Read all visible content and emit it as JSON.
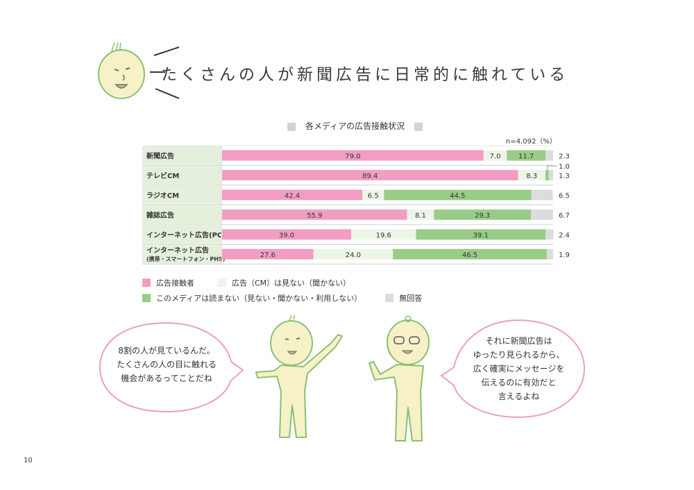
{
  "page": {
    "title": "たくさんの人が新聞広告に日常的に触れている",
    "page_number": "10"
  },
  "chart_data": {
    "type": "bar",
    "title": "各メディアの広告接触状況",
    "note": "n=4,092（%）",
    "categories": [
      "新聞広告",
      "テレビCM",
      "ラジオCM",
      "雑誌広告",
      "インターネット広告(PC)",
      "インターネット広告"
    ],
    "category_sublabels": [
      "",
      "",
      "",
      "",
      "",
      "(携帯・スマートフォン・PHS)"
    ],
    "series": [
      {
        "name": "広告接触者",
        "color": "#f19ec2",
        "values": [
          79.0,
          89.4,
          42.4,
          55.9,
          39.0,
          27.6
        ]
      },
      {
        "name": "広告（CM）は見ない（聞かない）",
        "color": "#edf5e8",
        "values": [
          7.0,
          8.3,
          6.5,
          8.1,
          19.6,
          24.0
        ]
      },
      {
        "name": "このメディアは読まない（見ない・聞かない・利用しない）",
        "color": "#99cc88",
        "values": [
          11.7,
          1.0,
          44.5,
          29.3,
          39.1,
          46.5
        ]
      },
      {
        "name": "無回答",
        "color": "#dcdcdc",
        "values": [
          2.3,
          1.3,
          6.5,
          6.7,
          2.4,
          1.9
        ]
      }
    ],
    "stacked": true,
    "orientation": "horizontal",
    "xlim": [
      0,
      100
    ]
  },
  "bubbles": {
    "left": [
      "8割の人が見ているんだ。",
      "たくさんの人の目に触れる",
      "機会があるってことだね"
    ],
    "right": [
      "それに新聞広告は",
      "ゆったり見られるから、",
      "広く確実にメッセージを",
      "伝えるのに有効だと",
      "言えるよね"
    ]
  }
}
